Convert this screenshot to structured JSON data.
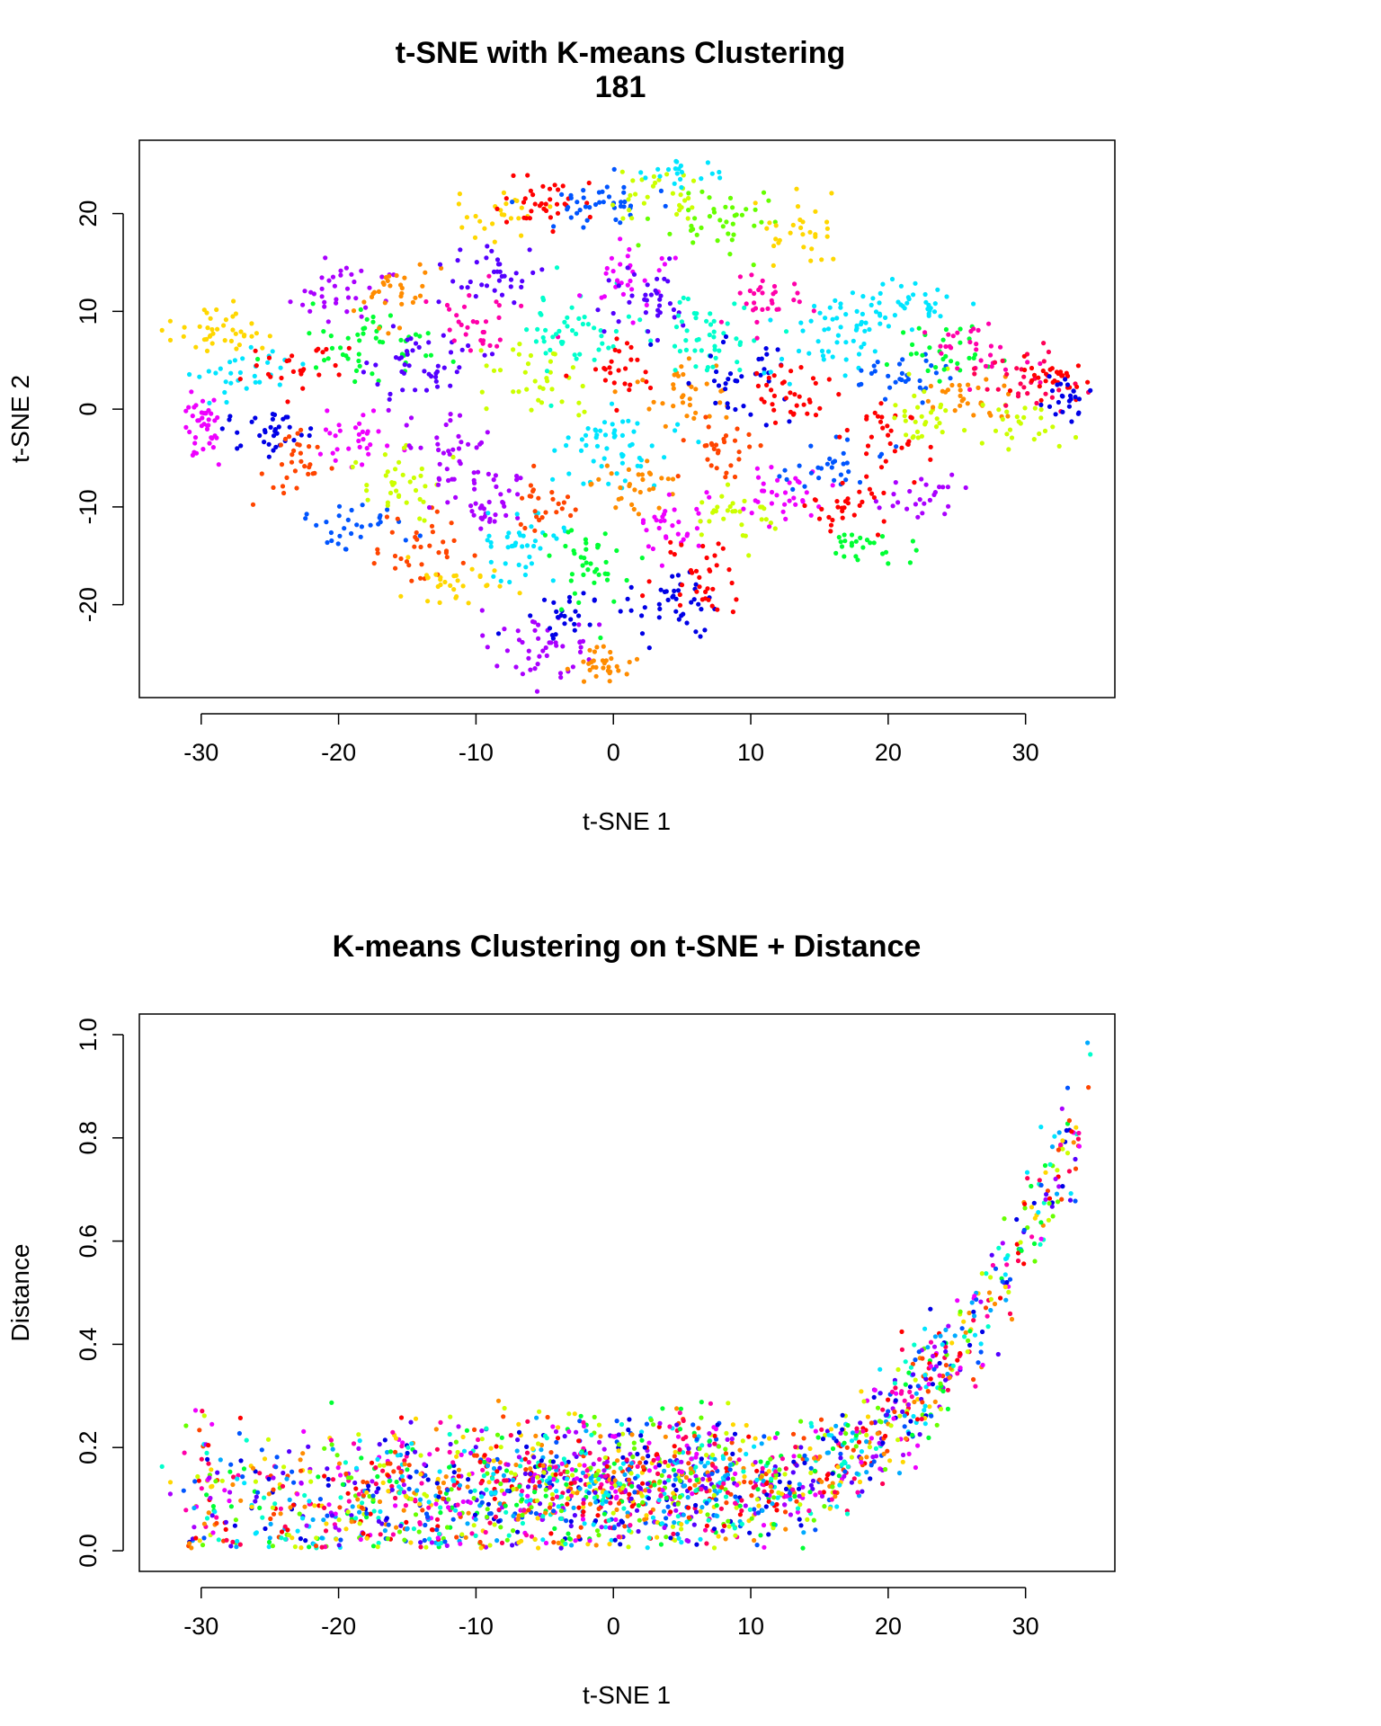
{
  "palette": [
    "#ff0000",
    "#ff4500",
    "#ff8c00",
    "#ffd700",
    "#ccff00",
    "#66ff00",
    "#00ff33",
    "#00ffcc",
    "#00e5ff",
    "#00aaff",
    "#0055ff",
    "#0000e6",
    "#5500ff",
    "#aa00ff",
    "#ee00ff",
    "#ff00aa",
    "#ff0055"
  ],
  "chart_data": [
    {
      "type": "scatter",
      "title": "t-SNE with K-means Clustering",
      "subtitle": "181",
      "xlabel": "t-SNE 1",
      "ylabel": "t-SNE 2",
      "xlim": [
        -34.5,
        36.5
      ],
      "ylim": [
        -29.5,
        27.5
      ],
      "xticks": [
        -30,
        -20,
        -10,
        0,
        10,
        20,
        30
      ],
      "yticks": [
        -20,
        -10,
        0,
        10,
        20
      ],
      "grid": false,
      "legend": "none",
      "note_points": "approx. 2000 points colored by 17 K-means clusters",
      "clusters": [
        {
          "center": [
            -30,
            -2
          ],
          "spread": [
            1.0,
            2.2
          ],
          "n": 40,
          "color": 14
        },
        {
          "center": [
            -29,
            8
          ],
          "spread": [
            2.0,
            1.8
          ],
          "n": 40,
          "color": 3
        },
        {
          "center": [
            -27,
            3
          ],
          "spread": [
            2.0,
            2.0
          ],
          "n": 30,
          "color": 8
        },
        {
          "center": [
            -25,
            -2
          ],
          "spread": [
            2.0,
            2.0
          ],
          "n": 35,
          "color": 11
        },
        {
          "center": [
            -24,
            4
          ],
          "spread": [
            2.0,
            2.0
          ],
          "n": 25,
          "color": 0
        },
        {
          "center": [
            -23,
            -6
          ],
          "spread": [
            1.5,
            2.0
          ],
          "n": 30,
          "color": 1
        },
        {
          "center": [
            -20,
            12
          ],
          "spread": [
            2.5,
            2.0
          ],
          "n": 35,
          "color": 13
        },
        {
          "center": [
            -19,
            -3
          ],
          "spread": [
            2.0,
            2.0
          ],
          "n": 30,
          "color": 14
        },
        {
          "center": [
            -19,
            -12
          ],
          "spread": [
            2.5,
            1.5
          ],
          "n": 30,
          "color": 10
        },
        {
          "center": [
            -18,
            6
          ],
          "spread": [
            3.0,
            3.0
          ],
          "n": 50,
          "color": 6
        },
        {
          "center": [
            -16,
            12
          ],
          "spread": [
            2.0,
            2.0
          ],
          "n": 30,
          "color": 2
        },
        {
          "center": [
            -15,
            -8
          ],
          "spread": [
            2.0,
            2.0
          ],
          "n": 35,
          "color": 4
        },
        {
          "center": [
            -14,
            4
          ],
          "spread": [
            2.5,
            2.5
          ],
          "n": 45,
          "color": 12
        },
        {
          "center": [
            -14,
            -14
          ],
          "spread": [
            2.0,
            2.5
          ],
          "n": 35,
          "color": 1
        },
        {
          "center": [
            -12,
            -4
          ],
          "spread": [
            2.5,
            2.5
          ],
          "n": 35,
          "color": 13
        },
        {
          "center": [
            -11,
            -18
          ],
          "spread": [
            2.5,
            1.5
          ],
          "n": 30,
          "color": 3
        },
        {
          "center": [
            -10,
            9
          ],
          "spread": [
            2.0,
            2.0
          ],
          "n": 30,
          "color": 15
        },
        {
          "center": [
            -9,
            14
          ],
          "spread": [
            2.0,
            2.0
          ],
          "n": 35,
          "color": 12
        },
        {
          "center": [
            -9,
            -9
          ],
          "spread": [
            2.0,
            2.5
          ],
          "n": 40,
          "color": 13
        },
        {
          "center": [
            -8,
            20
          ],
          "spread": [
            2.0,
            1.5
          ],
          "n": 25,
          "color": 3
        },
        {
          "center": [
            -7,
            -14
          ],
          "spread": [
            2.0,
            2.5
          ],
          "n": 40,
          "color": 8
        },
        {
          "center": [
            -6,
            3
          ],
          "spread": [
            2.5,
            2.5
          ],
          "n": 35,
          "color": 4
        },
        {
          "center": [
            -5,
            -10
          ],
          "spread": [
            1.5,
            2.0
          ],
          "n": 25,
          "color": 1
        },
        {
          "center": [
            -5,
            21
          ],
          "spread": [
            2.0,
            2.0
          ],
          "n": 35,
          "color": 0
        },
        {
          "center": [
            -5,
            -24
          ],
          "spread": [
            2.0,
            2.0
          ],
          "n": 45,
          "color": 13
        },
        {
          "center": [
            -4,
            -21
          ],
          "spread": [
            2.0,
            1.5
          ],
          "n": 25,
          "color": 11
        },
        {
          "center": [
            -3,
            8
          ],
          "spread": [
            3.0,
            3.0
          ],
          "n": 50,
          "color": 7
        },
        {
          "center": [
            -2,
            -16
          ],
          "spread": [
            2.0,
            3.0
          ],
          "n": 40,
          "color": 6
        },
        {
          "center": [
            -1,
            21
          ],
          "spread": [
            2.5,
            2.0
          ],
          "n": 40,
          "color": 10
        },
        {
          "center": [
            -1,
            -26
          ],
          "spread": [
            1.5,
            1.2
          ],
          "n": 30,
          "color": 2
        },
        {
          "center": [
            0,
            -4
          ],
          "spread": [
            3.0,
            2.5
          ],
          "n": 55,
          "color": 8
        },
        {
          "center": [
            0,
            4
          ],
          "spread": [
            1.5,
            2.0
          ],
          "n": 25,
          "color": 0
        },
        {
          "center": [
            1,
            13
          ],
          "spread": [
            2.0,
            2.0
          ],
          "n": 30,
          "color": 14
        },
        {
          "center": [
            2,
            -8
          ],
          "spread": [
            2.0,
            2.0
          ],
          "n": 30,
          "color": 2
        },
        {
          "center": [
            3,
            22
          ],
          "spread": [
            2.0,
            1.5
          ],
          "n": 30,
          "color": 4
        },
        {
          "center": [
            3,
            11
          ],
          "spread": [
            2.0,
            2.5
          ],
          "n": 35,
          "color": 12
        },
        {
          "center": [
            4,
            -20
          ],
          "spread": [
            2.0,
            2.0
          ],
          "n": 40,
          "color": 11
        },
        {
          "center": [
            4,
            -12
          ],
          "spread": [
            2.0,
            2.0
          ],
          "n": 30,
          "color": 14
        },
        {
          "center": [
            5,
            24
          ],
          "spread": [
            1.5,
            1.0
          ],
          "n": 20,
          "color": 8
        },
        {
          "center": [
            5,
            2
          ],
          "spread": [
            2.0,
            2.5
          ],
          "n": 35,
          "color": 2
        },
        {
          "center": [
            6,
            -17
          ],
          "spread": [
            2.0,
            2.5
          ],
          "n": 35,
          "color": 0
        },
        {
          "center": [
            7,
            8
          ],
          "spread": [
            2.5,
            2.5
          ],
          "n": 45,
          "color": 7
        },
        {
          "center": [
            8,
            -4
          ],
          "spread": [
            2.0,
            2.0
          ],
          "n": 30,
          "color": 1
        },
        {
          "center": [
            8,
            19
          ],
          "spread": [
            2.5,
            2.0
          ],
          "n": 40,
          "color": 5
        },
        {
          "center": [
            9,
            -11
          ],
          "spread": [
            2.0,
            2.0
          ],
          "n": 30,
          "color": 4
        },
        {
          "center": [
            10,
            3
          ],
          "spread": [
            2.5,
            2.5
          ],
          "n": 35,
          "color": 11
        },
        {
          "center": [
            11,
            11
          ],
          "spread": [
            2.0,
            2.0
          ],
          "n": 30,
          "color": 15
        },
        {
          "center": [
            12,
            -8
          ],
          "spread": [
            2.5,
            2.5
          ],
          "n": 35,
          "color": 14
        },
        {
          "center": [
            13,
            2
          ],
          "spread": [
            2.0,
            2.0
          ],
          "n": 35,
          "color": 0
        },
        {
          "center": [
            13,
            18
          ],
          "spread": [
            2.0,
            2.0
          ],
          "n": 30,
          "color": 3
        },
        {
          "center": [
            16,
            7
          ],
          "spread": [
            2.5,
            2.5
          ],
          "n": 35,
          "color": 8
        },
        {
          "center": [
            16,
            -6
          ],
          "spread": [
            2.0,
            2.0
          ],
          "n": 30,
          "color": 10
        },
        {
          "center": [
            17,
            -10
          ],
          "spread": [
            2.0,
            2.0
          ],
          "n": 30,
          "color": 0
        },
        {
          "center": [
            18,
            -14
          ],
          "spread": [
            2.0,
            1.0
          ],
          "n": 25,
          "color": 6
        },
        {
          "center": [
            18,
            10
          ],
          "spread": [
            2.5,
            1.5
          ],
          "n": 30,
          "color": 8
        },
        {
          "center": [
            20,
            -3
          ],
          "spread": [
            2.0,
            2.0
          ],
          "n": 30,
          "color": 0
        },
        {
          "center": [
            21,
            3
          ],
          "spread": [
            2.0,
            2.0
          ],
          "n": 30,
          "color": 10
        },
        {
          "center": [
            22,
            -9
          ],
          "spread": [
            2.0,
            1.5
          ],
          "n": 25,
          "color": 13
        },
        {
          "center": [
            22,
            11
          ],
          "spread": [
            2.0,
            1.5
          ],
          "n": 25,
          "color": 8
        },
        {
          "center": [
            23,
            -1
          ],
          "spread": [
            2.0,
            2.0
          ],
          "n": 30,
          "color": 4
        },
        {
          "center": [
            24,
            6
          ],
          "spread": [
            2.0,
            2.0
          ],
          "n": 30,
          "color": 6
        },
        {
          "center": [
            26,
            1
          ],
          "spread": [
            2.0,
            2.0
          ],
          "n": 30,
          "color": 2
        },
        {
          "center": [
            27,
            6
          ],
          "spread": [
            2.0,
            2.0
          ],
          "n": 30,
          "color": 15
        },
        {
          "center": [
            29,
            -2
          ],
          "spread": [
            2.0,
            2.0
          ],
          "n": 25,
          "color": 4
        },
        {
          "center": [
            30,
            3
          ],
          "spread": [
            2.0,
            2.0
          ],
          "n": 30,
          "color": 16
        },
        {
          "center": [
            32,
            3
          ],
          "spread": [
            1.5,
            1.5
          ],
          "n": 30,
          "color": 0
        },
        {
          "center": [
            33,
            1
          ],
          "spread": [
            1.0,
            1.5
          ],
          "n": 25,
          "color": 11
        }
      ]
    },
    {
      "type": "scatter",
      "title": "K-means Clustering on t-SNE + Distance",
      "xlabel": "t-SNE 1",
      "ylabel": "Distance",
      "xlim": [
        -34.5,
        36.5
      ],
      "ylim": [
        -0.04,
        1.04
      ],
      "xticks": [
        -30,
        -20,
        -10,
        0,
        10,
        20,
        30
      ],
      "yticks": [
        0.0,
        0.2,
        0.4,
        0.6,
        0.8,
        1.0
      ],
      "ytick_labels": [
        "0.0",
        "0.2",
        "0.4",
        "0.6",
        "0.8",
        "1.0"
      ],
      "grid": false,
      "legend": "none",
      "note_points": "approx. 2000 points; distance near 0-0.3 for t-SNE 1 below 10, rising to about 1.0 near t-SNE 1 = 33"
    }
  ]
}
